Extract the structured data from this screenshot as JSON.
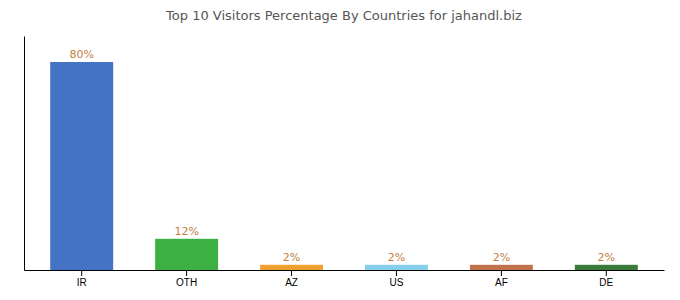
{
  "chart_data": {
    "type": "bar",
    "title": "Top 10 Visitors Percentage By Countries for jahandl.biz",
    "categories": [
      "IR",
      "OTH",
      "AZ",
      "US",
      "AF",
      "DE"
    ],
    "values": [
      80,
      12,
      2,
      2,
      2,
      2
    ],
    "value_labels": [
      "80%",
      "12%",
      "2%",
      "2%",
      "2%",
      "2%"
    ],
    "colors": [
      "#4472C4",
      "#3CB043",
      "#F0A030",
      "#87CEEB",
      "#C0724A",
      "#3A7A3A"
    ],
    "ylim": [
      0,
      90
    ],
    "grid": false,
    "data_labels": true,
    "tick_labels": "x"
  }
}
